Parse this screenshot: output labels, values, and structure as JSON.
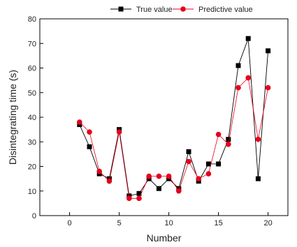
{
  "chart_data": {
    "type": "line",
    "xlabel": "Number",
    "ylabel": "Disintegrating time (s)",
    "xlim": [
      -3,
      22
    ],
    "ylim": [
      0,
      80
    ],
    "xticks": [
      0,
      5,
      10,
      15,
      20
    ],
    "yticks": [
      0,
      10,
      20,
      30,
      40,
      50,
      60,
      70,
      80
    ],
    "legend_position": "top-center",
    "grid": false,
    "x": [
      1,
      2,
      3,
      4,
      5,
      6,
      7,
      8,
      9,
      10,
      11,
      12,
      13,
      14,
      15,
      16,
      17,
      18,
      19,
      20
    ],
    "series": [
      {
        "name": "True value",
        "color": "#000000",
        "marker": "square",
        "values": [
          37,
          28,
          17,
          15,
          35,
          8,
          9,
          15,
          11,
          15,
          11,
          26,
          14,
          21,
          21,
          31,
          61,
          72,
          15,
          67
        ]
      },
      {
        "name": "Predictive value",
        "color": "#e8001c",
        "marker": "circle",
        "values": [
          38,
          34,
          18,
          14,
          34,
          7,
          7,
          16,
          16,
          16,
          10,
          22,
          15,
          17,
          33,
          29,
          52,
          56,
          31,
          52
        ]
      }
    ]
  }
}
